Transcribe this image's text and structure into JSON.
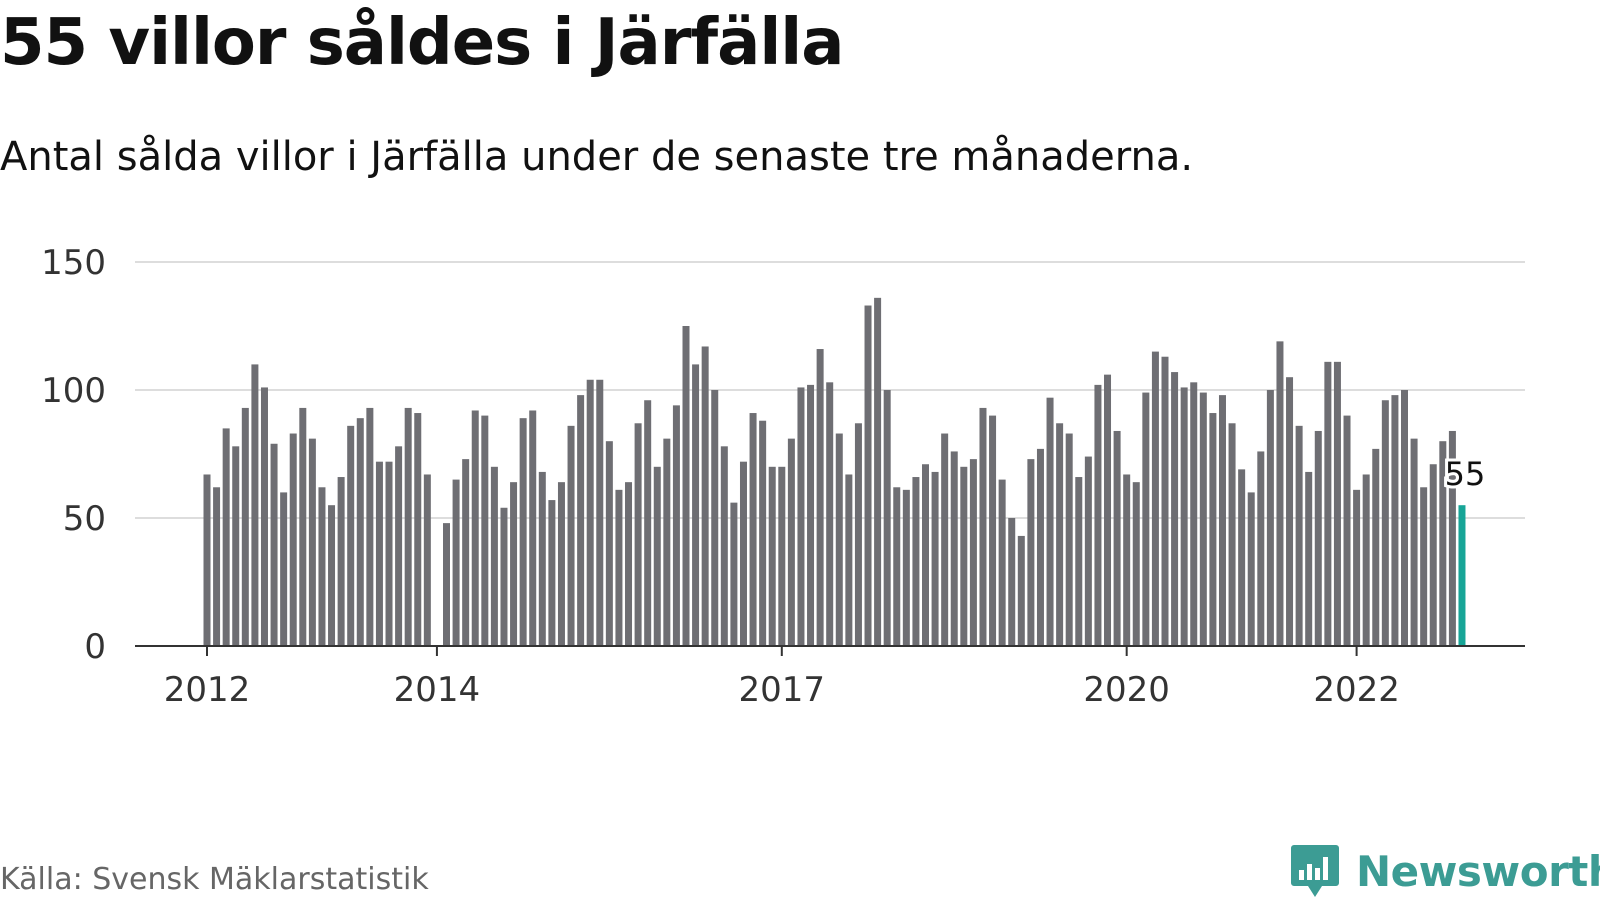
{
  "header": {
    "title": "55 villor såldes i Järfälla",
    "subtitle": "Antal sålda villor i Järfälla under de senaste tre månaderna."
  },
  "footer": {
    "source": "Källa: Svensk Mäklarstatistik",
    "brand": "Newsworthy"
  },
  "colors": {
    "bar": "#6e6e73",
    "highlight": "#17a597",
    "grid": "#dddddd",
    "axis": "#333333",
    "brand": "#3c9c94"
  },
  "chart_data": {
    "type": "bar",
    "title": "55 villor såldes i Järfälla",
    "subtitle": "Antal sålda villor i Järfälla under de senaste tre månaderna.",
    "xlabel": "",
    "ylabel": "",
    "ylim": [
      0,
      150
    ],
    "yticks": [
      0,
      50,
      100,
      150
    ],
    "xticks": [
      {
        "label": "2012",
        "index": 0
      },
      {
        "label": "2014",
        "index": 24
      },
      {
        "label": "2017",
        "index": 60
      },
      {
        "label": "2020",
        "index": 96
      },
      {
        "label": "2022",
        "index": 120
      }
    ],
    "grid": true,
    "legend": "none",
    "start": "2012-01",
    "frequency": "monthly",
    "values": [
      67,
      62,
      85,
      78,
      93,
      110,
      101,
      79,
      60,
      83,
      93,
      81,
      62,
      55,
      66,
      86,
      89,
      93,
      72,
      72,
      78,
      93,
      91,
      67,
      null,
      48,
      65,
      73,
      92,
      90,
      70,
      54,
      64,
      89,
      92,
      68,
      57,
      64,
      86,
      98,
      104,
      104,
      80,
      61,
      64,
      87,
      96,
      70,
      81,
      94,
      125,
      110,
      117,
      100,
      78,
      56,
      72,
      91,
      88,
      70,
      70,
      81,
      101,
      102,
      116,
      103,
      83,
      67,
      87,
      133,
      136,
      100,
      62,
      61,
      66,
      71,
      68,
      83,
      76,
      70,
      73,
      93,
      90,
      65,
      50,
      43,
      73,
      77,
      97,
      87,
      83,
      66,
      74,
      102,
      106,
      84,
      67,
      64,
      99,
      115,
      113,
      107,
      101,
      103,
      99,
      91,
      98,
      87,
      69,
      60,
      76,
      100,
      119,
      105,
      86,
      68,
      84,
      111,
      111,
      90,
      61,
      67,
      77,
      96,
      98,
      100,
      81,
      62,
      71,
      80,
      84,
      55
    ],
    "highlight": {
      "index": 131,
      "value": 55,
      "label": "55"
    }
  }
}
